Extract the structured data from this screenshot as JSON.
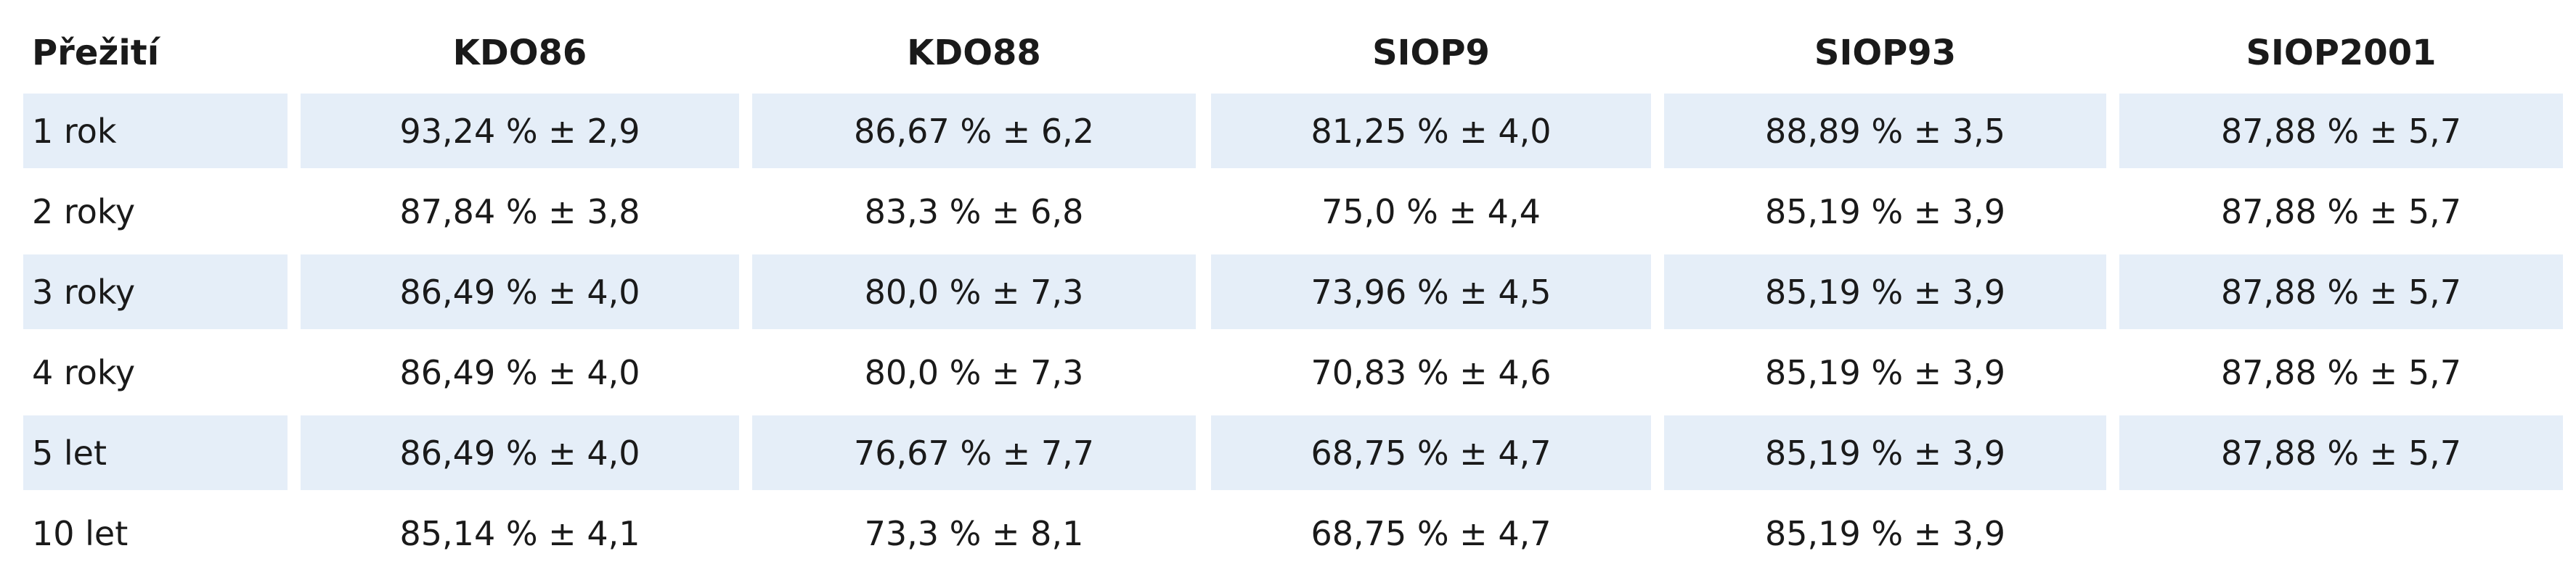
{
  "table": {
    "header": [
      "Přežití",
      "KDO86",
      "KDO88",
      "SIOP9",
      "SIOP93",
      "SIOP2001"
    ],
    "rows": [
      [
        "1 rok",
        "93,24 % ± 2,9",
        "86,67 % ± 6,2",
        "81,25 % ± 4,0",
        "88,89 % ± 3,5",
        "87,88 % ± 5,7"
      ],
      [
        "2 roky",
        "87,84 % ± 3,8",
        "83,3 % ± 6,8",
        "75,0 % ± 4,4",
        "85,19 % ± 3,9",
        "87,88 % ± 5,7"
      ],
      [
        "3 roky",
        "86,49 % ± 4,0",
        "80,0 % ± 7,3",
        "73,96 % ± 4,5",
        "85,19 % ± 3,9",
        "87,88 % ± 5,7"
      ],
      [
        "4 roky",
        "86,49 % ± 4,0",
        "80,0 % ± 7,3",
        "70,83 % ± 4,6",
        "85,19 % ± 3,9",
        "87,88 % ± 5,7"
      ],
      [
        "5 let",
        "86,49 % ± 4,0",
        "76,67 % ± 7,7",
        "68,75 % ± 4,7",
        "85,19 % ± 3,9",
        "87,88 % ± 5,7"
      ],
      [
        "10 let",
        "85,14 % ± 4,1",
        "73,3 % ± 8,1",
        "68,75 % ± 4,7",
        "85,19 % ± 3,9"
      ]
    ]
  }
}
